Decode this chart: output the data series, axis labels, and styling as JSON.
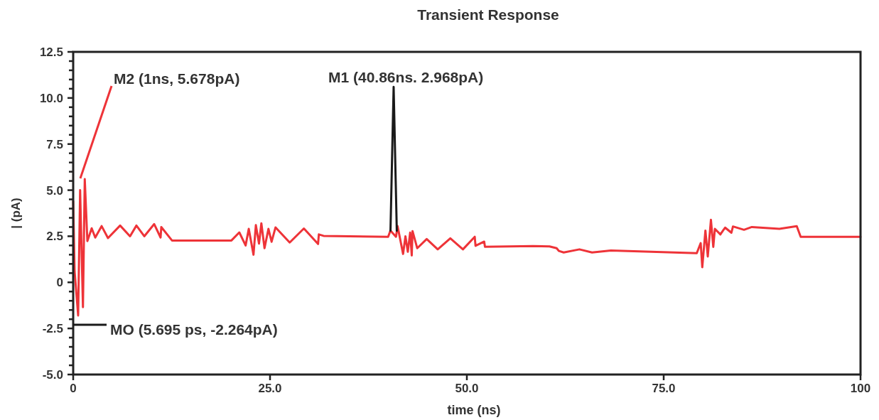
{
  "chart_data": {
    "type": "line",
    "title": "Transient Response",
    "xlabel": "time (ns)",
    "ylabel": "| (pA)",
    "xlim": [
      0,
      100
    ],
    "xticks": [
      0,
      {
        "value": 25,
        "label": "25.0"
      },
      {
        "value": 50,
        "label": "50.0"
      },
      {
        "value": 75,
        "label": "75.0"
      },
      100
    ],
    "ylim": [
      -5,
      12.5
    ],
    "yticks": [
      {
        "value": -5,
        "label": "-5.0"
      },
      {
        "value": -4.5,
        "label": null
      },
      {
        "value": -4,
        "label": null
      },
      {
        "value": -3.5,
        "label": null
      },
      {
        "value": -3,
        "label": null
      },
      {
        "value": -2.5,
        "label": "-2.5"
      },
      {
        "value": -2,
        "label": null
      },
      {
        "value": -1.5,
        "label": null
      },
      {
        "value": -1,
        "label": null
      },
      {
        "value": -0.5,
        "label": null
      },
      0,
      {
        "value": 0.5,
        "label": null
      },
      {
        "value": 1,
        "label": null
      },
      {
        "value": 1.5,
        "label": null
      },
      {
        "value": 2,
        "label": null
      },
      2.5,
      {
        "value": 3,
        "label": null
      },
      {
        "value": 3.5,
        "label": null
      },
      {
        "value": 4,
        "label": null
      },
      {
        "value": 4.5,
        "label": null
      },
      {
        "value": 5,
        "label": "5.0"
      },
      {
        "value": 5.5,
        "label": null
      },
      {
        "value": 6,
        "label": null
      },
      {
        "value": 6.5,
        "label": null
      },
      {
        "value": 7,
        "label": null
      },
      7.5,
      {
        "value": 8,
        "label": null
      },
      {
        "value": 8.5,
        "label": null
      },
      {
        "value": 9,
        "label": null
      },
      {
        "value": 9.5,
        "label": null
      },
      {
        "value": 10,
        "label": "10.0"
      },
      {
        "value": 10.5,
        "label": null
      },
      {
        "value": 11,
        "label": null
      },
      {
        "value": 11.5,
        "label": null
      },
      {
        "value": 12,
        "label": null
      },
      12.5
    ],
    "grid": false,
    "line_style": "solid",
    "marker": "none",
    "series": [
      {
        "color": "#ee3338",
        "x": [
          0,
          0.18,
          0.63,
          0.88,
          1.24,
          1.47,
          1.8,
          2.35,
          2.8,
          3.61,
          4.42,
          5.96,
          7.22,
          8.03,
          9.03,
          10.29,
          11.1,
          11.19,
          12.55,
          20.1,
          21.1,
          21.9,
          22.3,
          22.9,
          23.2,
          23.6,
          23.9,
          24.3,
          24.8,
          25.2,
          25.7,
          27.5,
          29.3,
          31.1,
          31.2,
          31.8,
          40,
          40.3,
          41,
          41.2,
          41.9,
          42.2,
          42.5,
          42.8,
          43,
          43.1,
          43.7,
          44.9,
          46.3,
          47.9,
          49.5,
          51,
          51.1,
          52.2,
          52.3,
          58.4,
          60.5,
          61.4,
          61.7,
          62.3,
          64.3,
          65.9,
          68.3,
          79.2,
          79.7,
          79.9,
          80.3,
          80.6,
          81,
          81.3,
          81.5,
          82.2,
          82.8,
          83.6,
          83.8,
          85.2,
          86.2,
          89.7,
          91.9,
          92.4,
          100
        ],
        "values": [
          4.4,
          0.6,
          -1.8,
          5,
          -1.35,
          5.6,
          2.24,
          2.93,
          2.43,
          3.05,
          2.4,
          3.08,
          2.5,
          3.08,
          2.5,
          3.16,
          2.43,
          3,
          2.27,
          2.27,
          2.71,
          2,
          2.9,
          1.5,
          3.1,
          2.1,
          3.2,
          1.85,
          2.9,
          2.2,
          2.98,
          2.16,
          2.92,
          2.08,
          2.6,
          2.52,
          2.47,
          2.81,
          2.47,
          3.05,
          1.54,
          2.5,
          1.66,
          2.7,
          1.46,
          2.78,
          1.85,
          2.35,
          1.79,
          2.39,
          1.79,
          2.47,
          1.98,
          2.21,
          1.93,
          1.97,
          1.95,
          1.85,
          1.7,
          1.62,
          1.79,
          1.62,
          1.73,
          1.58,
          2.13,
          0.82,
          2.81,
          1.4,
          3.39,
          1.92,
          2.9,
          2.6,
          2.97,
          2.69,
          3.03,
          2.85,
          3,
          2.9,
          3.05,
          2.47,
          2.47
        ]
      },
      {
        "color": "#1a1a1a",
        "x": [
          40.3,
          40.7,
          41.1
        ],
        "values": [
          2.8,
          10.6,
          2.8
        ]
      }
    ],
    "annotations": [
      "M2 (1ns, 5.678pA)",
      "M1 (40.86ns. 2.968pA)",
      "MO (5.695 ps, -2.264pA)"
    ]
  }
}
